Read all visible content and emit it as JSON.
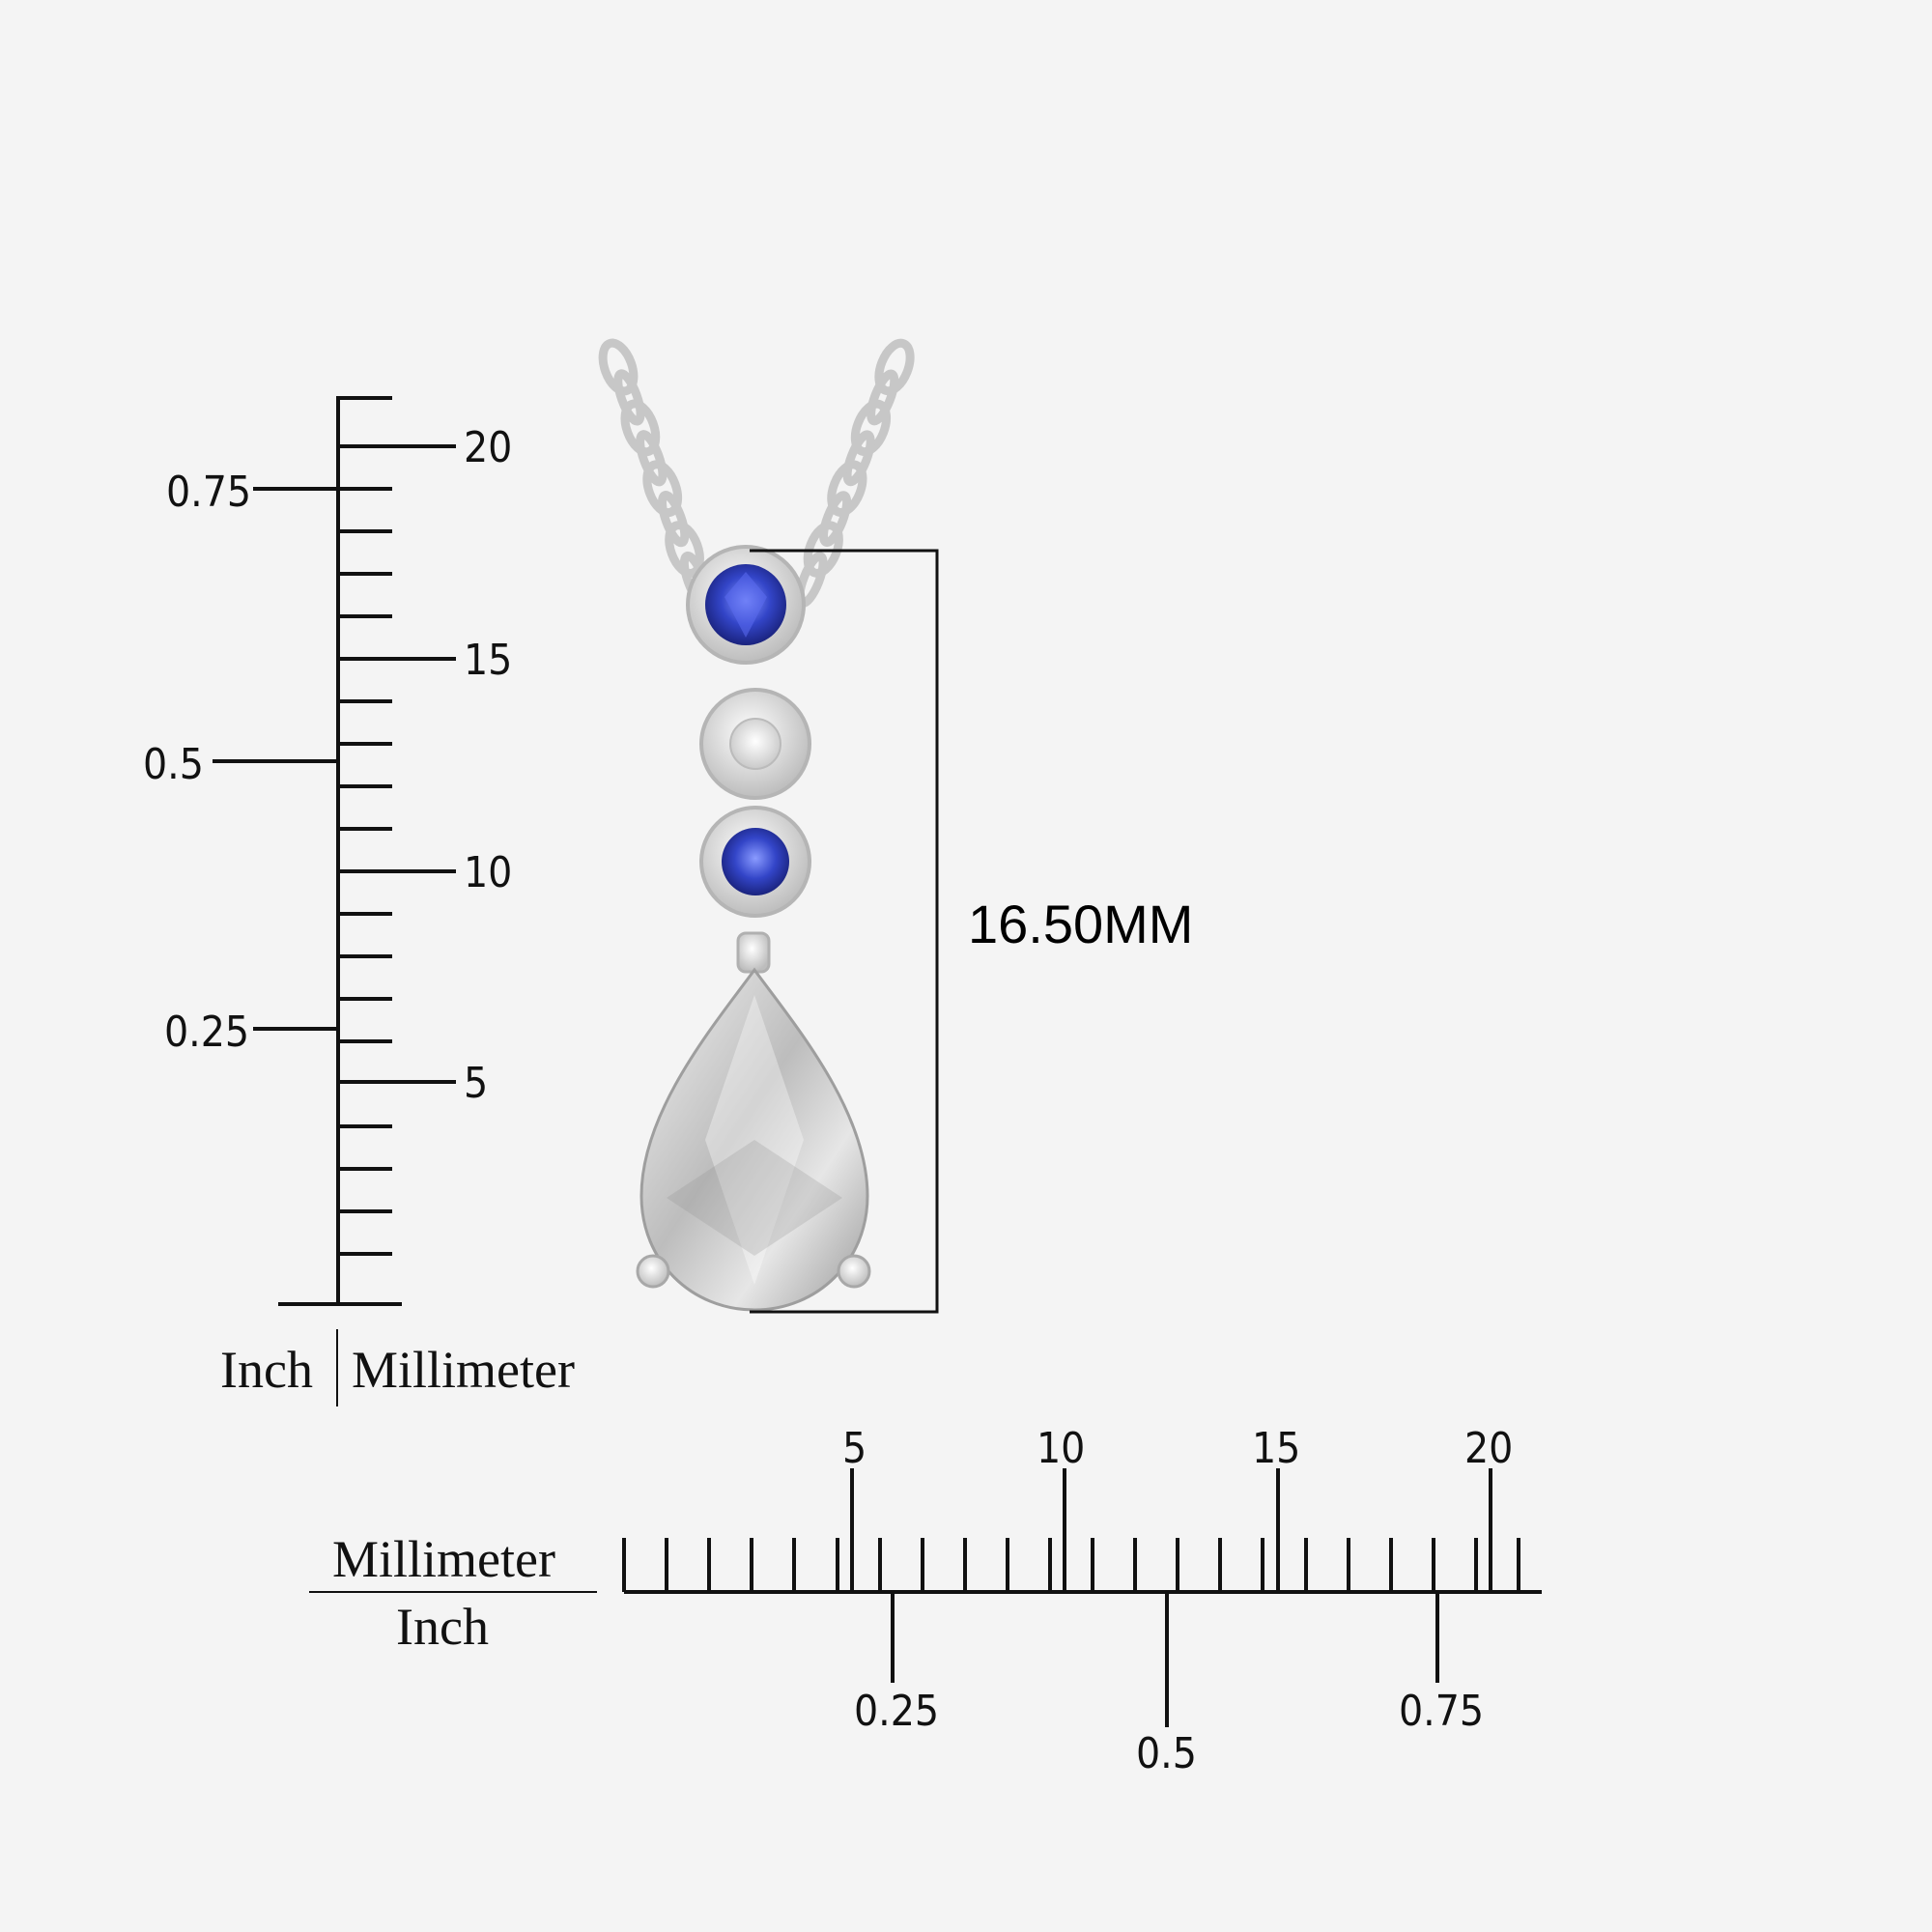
{
  "dimension": {
    "label": "16.50MM"
  },
  "vertical_ruler": {
    "unit_left": "Inch",
    "unit_right": "Millimeter",
    "mm_labels": [
      "20",
      "15",
      "10",
      "5"
    ],
    "inch_labels": [
      "0.75",
      "0.5",
      "0.25"
    ]
  },
  "horizontal_ruler": {
    "unit_top": "Millimeter",
    "unit_bottom": "Inch",
    "mm_labels": [
      "5",
      "10",
      "15",
      "20"
    ],
    "inch_labels": [
      "0.25",
      "0.5",
      "0.75"
    ]
  },
  "colors": {
    "background": "#f4f4f4",
    "ink": "#111111",
    "sapphire": "#3345c8",
    "metal": "#d9d9d9"
  }
}
